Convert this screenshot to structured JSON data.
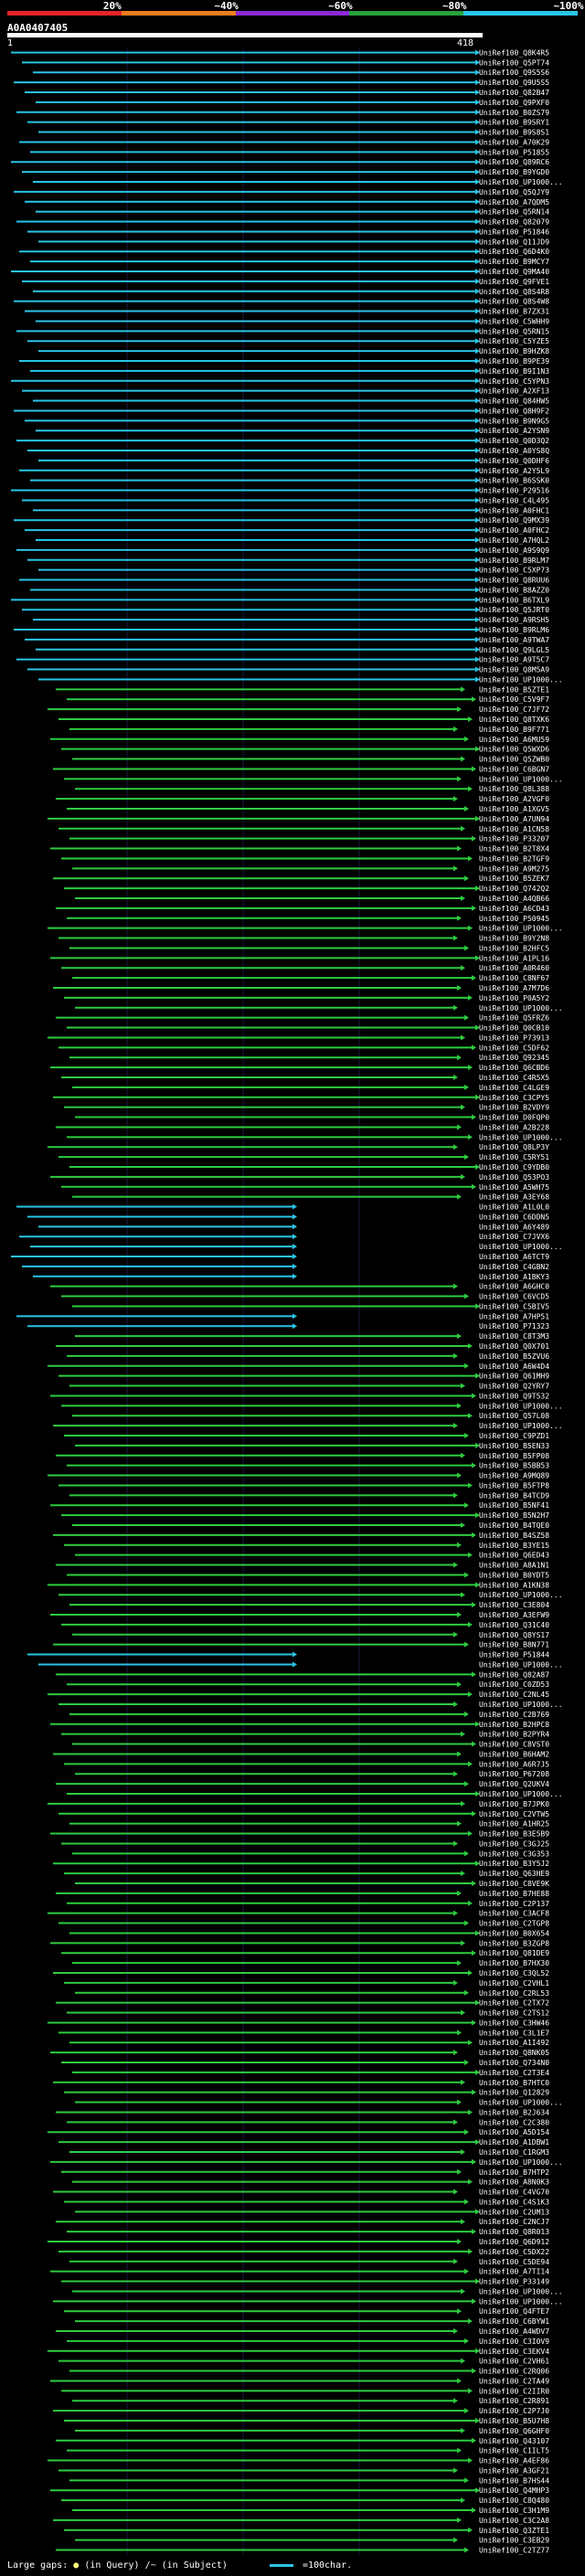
{
  "scale": {
    "labels": [
      "20%",
      "~40%",
      "~60%",
      "~80%",
      "~100%"
    ],
    "colors": [
      "#e8242a",
      "#f07e1e",
      "#8a2ad6",
      "#28a23c",
      "#29c5e6"
    ]
  },
  "query": {
    "id": "A0A0407405",
    "start": "1",
    "end": "418"
  },
  "hit_colors": {
    "high": "#29c5e6",
    "mid": "#2ecc40",
    "grid": "#1a1a40"
  },
  "hits": [
    "UniRef100_Q8K4R5",
    "UniRef100_Q5PT74",
    "UniRef100_Q9S5S6",
    "UniRef100_Q9U5S5",
    "UniRef100_Q82B47",
    "UniRef100_Q9PXF0",
    "UniRef100_B0ZS79",
    "UniRef100_B9SRY1",
    "UniRef100_B9S8S1",
    "UniRef100_A70K29",
    "UniRef100_P51855",
    "UniRef100_Q89RC6",
    "UniRef100_B9YGD0",
    "UniRef100_UP1000...",
    "UniRef100_Q5QJY9",
    "UniRef100_A7QDM5",
    "UniRef100_Q5RN14",
    "UniRef100_Q82079",
    "UniRef100_P51846",
    "UniRef100_Q11JD9",
    "UniRef100_Q6D4K0",
    "UniRef100_B9MCY7",
    "UniRef100_Q9MA40",
    "UniRef100_Q9FVE1",
    "UniRef100_Q8S4R8",
    "UniRef100_Q8S4W8",
    "UniRef100_B7ZX31",
    "UniRef100_C5WHH9",
    "UniRef100_Q5RN15",
    "UniRef100_C5YZE5",
    "UniRef100_B9HZK8",
    "UniRef100_B9PE39",
    "UniRef100_B9I1N3",
    "UniRef100_C5YPN3",
    "UniRef100_A2XF13",
    "UniRef100_Q84HW5",
    "UniRef100_Q8H9F2",
    "UniRef100_B9N9G5",
    "UniRef100_A2YSN9",
    "UniRef100_Q0D3Q2",
    "UniRef100_A0YS8Q",
    "UniRef100_Q0DHF6",
    "UniRef100_A2Y5L9",
    "UniRef100_B6SSK0",
    "UniRef100_P29516",
    "UniRef100_C4L495",
    "UniRef100_A0FHC1",
    "UniRef100_Q9MX39",
    "UniRef100_A0FHC2",
    "UniRef100_A7HQL2",
    "UniRef100_A9S9Q9",
    "UniRef100_B9RLM7",
    "UniRef100_C5XP73",
    "UniRef100_Q8RUU6",
    "UniRef100_B8AZZ0",
    "UniRef100_B6TXL9",
    "UniRef100_Q5JRT0",
    "UniRef100_A9RSH5",
    "UniRef100_B9RLM6",
    "UniRef100_A9TWA7",
    "UniRef100_Q9LGL5",
    "UniRef100_A9T5C7",
    "UniRef100_Q8M5A9",
    "UniRef100_UP1000...",
    "UniRef100_B5ZTE1",
    "UniRef100_C5V9F7",
    "UniRef100_C7JF72",
    "UniRef100_Q8TXK6",
    "UniRef100_B9F771",
    "UniRef100_A6MU59",
    "UniRef100_Q5WXD6",
    "UniRef100_Q5ZWB0",
    "UniRef100_C6BGN7",
    "UniRef100_UP1000...",
    "UniRef100_Q8L388",
    "UniRef100_A2VGF0",
    "UniRef100_A1XGV5",
    "UniRef100_A7UN94",
    "UniRef100_A1CN58",
    "UniRef100_P33207",
    "UniRef100_B2T8X4",
    "UniRef100_B2TGF9",
    "UniRef100_A9M275",
    "UniRef100_B5ZEK7",
    "UniRef100_Q742Q2",
    "UniRef100_A4QB66",
    "UniRef100_A6CD43",
    "UniRef100_P50945",
    "UniRef100_UP1000...",
    "UniRef100_B9Y2N8",
    "UniRef100_B2HFC5",
    "UniRef100_A1PL16",
    "UniRef100_A0R460",
    "UniRef100_C8NF67",
    "UniRef100_A7M7D6",
    "UniRef100_P0A5Y2",
    "UniRef100_UP1000...",
    "UniRef100_Q5FRZ6",
    "UniRef100_Q0CB10",
    "UniRef100_P73913",
    "UniRef100_C5DF62",
    "UniRef100_Q92345",
    "UniRef100_Q6CBD6",
    "UniRef100_C4R5X5",
    "UniRef100_C4LGE9",
    "UniRef100_C3CPY5",
    "UniRef100_B2VDY9",
    "UniRef100_D0FQP0",
    "UniRef100_A2B228",
    "UniRef100_UP1000...",
    "UniRef100_Q8LP3Y",
    "UniRef100_C5RY51",
    "UniRef100_C9YDB0",
    "UniRef100_Q53PO3",
    "UniRef100_A5WH75",
    "UniRef100_A3EY68",
    "UniRef100_A1L0L0",
    "UniRef100_C6DDN5",
    "UniRef100_A6Y489",
    "UniRef100_C7JVX6",
    "UniRef100_UP1000...",
    "UniRef100_A6TCT9",
    "UniRef100_C4GBN2",
    "UniRef100_A1BKY3",
    "UniRef100_A6GHC0",
    "UniRef100_C6VCD5",
    "UniRef100_C5BIV5",
    "UniRef100_A7HP51",
    "UniRef100_P71323",
    "UniRef100_C8T3M3",
    "UniRef100_Q0X701",
    "UniRef100_B5ZVU6",
    "UniRef100_A6W4D4",
    "UniRef100_Q61MH9",
    "UniRef100_Q2YRY7",
    "UniRef100_Q9T532",
    "UniRef100_UP1000...",
    "UniRef100_Q57L08",
    "UniRef100_UP1000...",
    "UniRef100_C9PZD1",
    "UniRef100_B5EN33",
    "UniRef100_B5FP08",
    "UniRef100_B5BB53",
    "UniRef100_A9MQ89",
    "UniRef100_B5FTP8",
    "UniRef100_B4TCD9",
    "UniRef100_B5NF41",
    "UniRef100_B5N2H7",
    "UniRef100_B4TQE0",
    "UniRef100_B4SZ58",
    "UniRef100_B3YE15",
    "UniRef100_Q6ED43",
    "UniRef100_A8A1N1",
    "UniRef100_B0YDT5",
    "UniRef100_A1KN38",
    "UniRef100_UP1000...",
    "UniRef100_C3E804",
    "UniRef100_A3EFW9",
    "UniRef100_Q31C40",
    "UniRef100_Q8YS17",
    "UniRef100_B8N771",
    "UniRef100_P51844",
    "UniRef100_UP1000...",
    "UniRef100_Q82A87",
    "UniRef100_C0ZD53",
    "UniRef100_C2NL45",
    "UniRef100_UP1000...",
    "UniRef100_C2B769",
    "UniRef100_B2HPC8",
    "UniRef100_B2PYR4",
    "UniRef100_C8VST0",
    "UniRef100_B6HAM2",
    "UniRef100_A6R7J5",
    "UniRef100_P67208",
    "UniRef100_Q2UKV4",
    "UniRef100_UP1000...",
    "UniRef100_B7JPK0",
    "UniRef100_C2VTW5",
    "UniRef100_A1HR25",
    "UniRef100_B3E5B9",
    "UniRef100_C3GJ25",
    "UniRef100_C3G353",
    "UniRef100_B3Y5J2",
    "UniRef100_Q63HE9",
    "UniRef100_C8VE9K",
    "UniRef100_B7HE88",
    "UniRef100_C2P137",
    "UniRef100_C3ACF8",
    "UniRef100_C2TGP8",
    "UniRef100_B0X654",
    "UniRef100_B3ZGP8",
    "UniRef100_Q81DE9",
    "UniRef100_B7HX30",
    "UniRef100_C3QL52",
    "UniRef100_C2VHL1",
    "UniRef100_C2RL53",
    "UniRef100_C2TX72",
    "UniRef100_C2TS12",
    "UniRef100_C3HW46",
    "UniRef100_C3L1E7",
    "UniRef100_A1I492",
    "UniRef100_Q8NK05",
    "UniRef100_Q734N0",
    "UniRef100_C2T3E4",
    "UniRef100_B7HTC0",
    "UniRef100_Q12829",
    "UniRef100_UP1000...",
    "UniRef100_B2J634",
    "UniRef100_C2C380",
    "UniRef100_A5D154",
    "UniRef100_A1DBW1",
    "UniRef100_C1RGM3",
    "UniRef100_UP1000...",
    "UniRef100_B7HTP2",
    "UniRef100_A8N0K3",
    "UniRef100_C4VG70",
    "UniRef100_C4S1K3",
    "UniRef100_C2UM13",
    "UniRef100_C2NCJ7",
    "UniRef100_Q8R013",
    "UniRef100_Q6D912",
    "UniRef100_C5DX22",
    "UniRef100_C5DE94",
    "UniRef100_A7TI14",
    "UniRef100_P33149",
    "UniRef100_UP1000...",
    "UniRef100_UP1000...",
    "UniRef100_Q4FTE7",
    "UniRef100_C6BYW1",
    "UniRef100_A4WDV7",
    "UniRef100_C3I0V9",
    "UniRef100_C3EKV4",
    "UniRef100_C2VH61",
    "UniRef100_C2RQ06",
    "UniRef100_C2TA49",
    "UniRef100_C2IIR0",
    "UniRef100_C2R891",
    "UniRef100_C2P7J0",
    "UniRef100_B5U7H8",
    "UniRef100_Q6GHF0",
    "UniRef100_Q43107",
    "UniRef100_C1ILT5",
    "UniRef100_A4EF86",
    "UniRef100_A3GF21",
    "UniRef100_B7HS44",
    "UniRef100_Q4MHP3",
    "UniRef100_C8Q480",
    "UniRef100_C3H1M9",
    "UniRef100_C3C2A8",
    "UniRef100_Q3ZTE1",
    "UniRef100_C3EB29",
    "UniRef100_C2TZ77"
  ],
  "footer": {
    "gaps_label": "Large gaps:",
    "in_query": "(in Query)",
    "in_subject": "/~ (in Subject)",
    "legend_label": "=100char."
  }
}
